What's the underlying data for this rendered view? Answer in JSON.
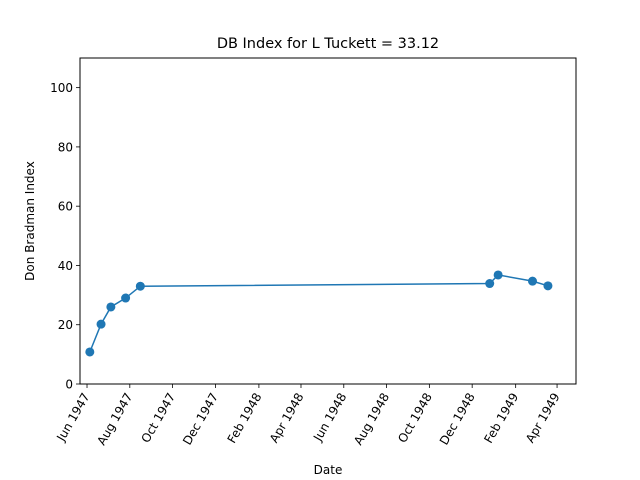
{
  "chart_data": {
    "type": "line",
    "title": "DB Index for L Tuckett = 33.12",
    "xlabel": "Date",
    "ylabel": "Don Bradman Index",
    "ylim": [
      0,
      110
    ],
    "xlim": [
      "1947-05-22",
      "1949-04-28"
    ],
    "yticks": [
      0,
      20,
      40,
      60,
      80,
      100
    ],
    "xticks": [
      {
        "date": "1947-06-01",
        "label": "Jun 1947"
      },
      {
        "date": "1947-08-01",
        "label": "Aug 1947"
      },
      {
        "date": "1947-10-01",
        "label": "Oct 1947"
      },
      {
        "date": "1947-12-01",
        "label": "Dec 1947"
      },
      {
        "date": "1948-02-01",
        "label": "Feb 1948"
      },
      {
        "date": "1948-04-01",
        "label": "Apr 1948"
      },
      {
        "date": "1948-06-01",
        "label": "Jun 1948"
      },
      {
        "date": "1948-08-01",
        "label": "Aug 1948"
      },
      {
        "date": "1948-10-01",
        "label": "Oct 1948"
      },
      {
        "date": "1948-12-01",
        "label": "Dec 1948"
      },
      {
        "date": "1949-02-01",
        "label": "Feb 1949"
      },
      {
        "date": "1949-04-01",
        "label": "Apr 1949"
      }
    ],
    "grid": false,
    "series": [
      {
        "color": "#1f77b4",
        "points": [
          {
            "x": "1947-06-05",
            "y": 10.8
          },
          {
            "x": "1947-06-21",
            "y": 20.2
          },
          {
            "x": "1947-07-05",
            "y": 26.0
          },
          {
            "x": "1947-07-26",
            "y": 29.0
          },
          {
            "x": "1947-08-16",
            "y": 33.0
          },
          {
            "x": "1948-12-26",
            "y": 33.9
          },
          {
            "x": "1949-01-07",
            "y": 36.8
          },
          {
            "x": "1949-02-25",
            "y": 34.7
          },
          {
            "x": "1949-03-19",
            "y": 33.12
          }
        ]
      }
    ]
  }
}
